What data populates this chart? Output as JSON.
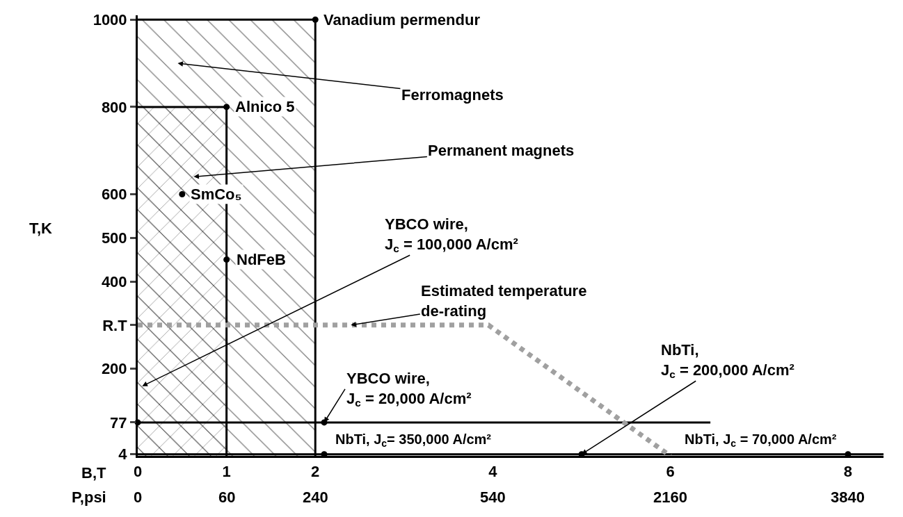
{
  "chart_data": {
    "type": "line",
    "ylabel": "T,K",
    "xlabel": "B,T",
    "xlim": [
      0,
      8.4
    ],
    "ylim": [
      0,
      1010
    ],
    "xticks": [
      0,
      1,
      2,
      4,
      6,
      8
    ],
    "yticks": [
      4,
      77,
      200,
      {
        "value": 300,
        "label": "R.T"
      },
      400,
      500,
      600,
      800,
      1000
    ],
    "marker": "none",
    "series": [
      {
        "type": "area",
        "color": "#000000",
        "x": [
          0,
          2,
          2
        ],
        "values": [
          1000,
          1000,
          0
        ]
      },
      {
        "type": "area",
        "color": "#000000",
        "x": [
          0,
          1,
          1
        ],
        "values": [
          800,
          800,
          0
        ]
      },
      {
        "color": "#000000",
        "x": [
          0,
          6.45
        ],
        "values": [
          77,
          77
        ]
      },
      {
        "color": "#000000",
        "x": [
          0,
          8.4
        ],
        "values": [
          4,
          4
        ]
      },
      {
        "color": "#a0a0a0",
        "line_style": "dotted",
        "x": [
          0,
          3.95,
          6
        ],
        "values": [
          300,
          300,
          0
        ]
      },
      {
        "type": "scatter",
        "color": "#000000",
        "marker": "circle",
        "x": [
          2,
          1,
          0.5,
          1,
          0,
          2.1,
          2.1,
          5,
          8
        ],
        "values": [
          1000,
          800,
          600,
          450,
          77,
          77,
          4,
          4,
          4
        ]
      }
    ],
    "annotations": [
      {
        "text": "Vanadium permendur",
        "x": 2,
        "y": 1000
      },
      "Ferromagnets",
      {
        "text": "Alnico 5",
        "x": 1,
        "y": 800
      },
      "Permanent magnets",
      {
        "text": "SmCo₅",
        "x": 0.5,
        "y": 600
      },
      {
        "text": "NdFeB",
        "x": 1,
        "y": 450
      },
      "YBCO wire,\nJ$_{c}$ = 100,000 A/cm²",
      {
        "text": "Estimated temperature\nde-rating",
        "x": 2.4,
        "y": 300
      },
      {
        "text": "YBCO wire,\nJ$_{c}$ = 20,000 A/cm²",
        "x": 2.1,
        "y": 77
      },
      {
        "text": "NbTi,\nJ$_{c}$= 350,000 A/cm²",
        "x": 2.1,
        "y": 4
      },
      {
        "text": "NbTi,\nJ$_{c}$ = 200,000 A/cm²",
        "x": 5,
        "y": 4
      },
      {
        "text": "NbTi,\nJ$_{c}$ = 70,000 A/cm²",
        "x": 8,
        "y": 4
      },
      "P,psi",
      "0",
      "60",
      "240",
      "540",
      "2160",
      "3840"
    ]
  }
}
